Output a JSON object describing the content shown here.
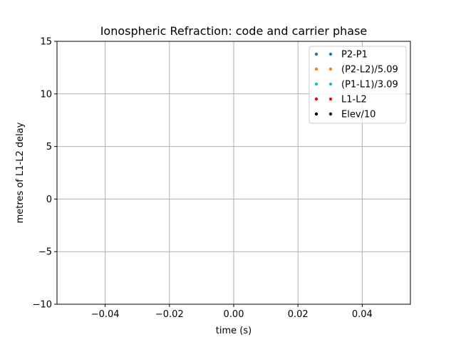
{
  "chart_data": {
    "type": "scatter",
    "title": "Ionospheric Refraction: code and carrier phase",
    "xlabel": "time (s)",
    "ylabel": "metres of L1-L2 delay",
    "xlim": [
      -0.055,
      0.055
    ],
    "ylim": [
      -10,
      15
    ],
    "x_ticks": [
      -0.04,
      -0.02,
      0.0,
      0.02,
      0.04
    ],
    "x_tick_labels": [
      "−0.04",
      "−0.02",
      "0.00",
      "0.02",
      "0.04"
    ],
    "y_ticks": [
      -10,
      -5,
      0,
      5,
      10,
      15
    ],
    "y_tick_labels": [
      "−10",
      "−5",
      "0",
      "5",
      "10",
      "15"
    ],
    "grid": true,
    "legend_position": "top-right",
    "series": [
      {
        "name": "P2-P1",
        "color": "#1f77b4",
        "points": []
      },
      {
        "name": "(P2-L2)/5.09",
        "color": "#ff7f0e",
        "points": []
      },
      {
        "name": "(P1-L1)/3.09",
        "color": "#17becf",
        "points": []
      },
      {
        "name": "L1-L2",
        "color": "#ff0000",
        "points": []
      },
      {
        "name": "Elev/10",
        "color": "#000000",
        "points": []
      }
    ]
  }
}
